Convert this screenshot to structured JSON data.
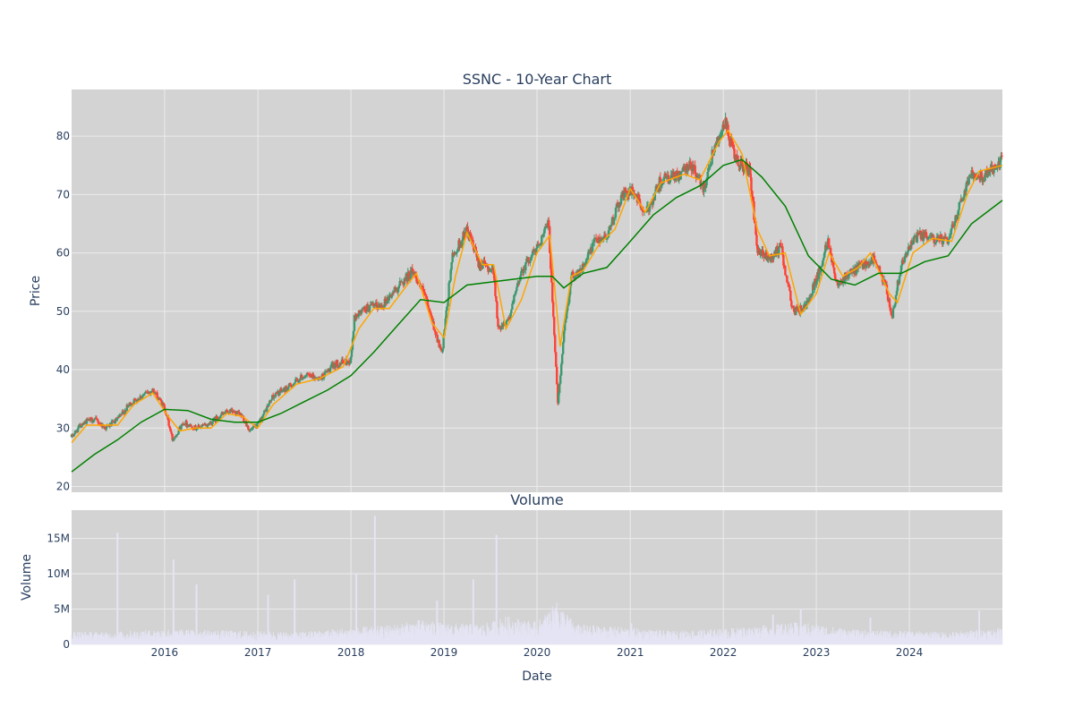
{
  "chart_data": [
    {
      "type": "candlestick",
      "title": "SSNC - 10-Year Chart",
      "xlabel": "",
      "ylabel": "Price",
      "ylim": [
        19,
        88
      ],
      "yticks": [
        20,
        30,
        40,
        50,
        60,
        70,
        80
      ],
      "xticks": [
        "2016",
        "2017",
        "2018",
        "2019",
        "2020",
        "2021",
        "2022",
        "2023",
        "2024"
      ],
      "xrange": [
        "2015-01-01",
        "2024-12-31"
      ],
      "grid": true,
      "colors": {
        "up": "#3d9970",
        "down": "#ff4136",
        "ma_fast": "#ffa500",
        "ma_slow": "#008000",
        "plot_bg": "#d3d3d3"
      },
      "close_path": [
        [
          "2015-01-01",
          28.5
        ],
        [
          "2015-02-15",
          31.0
        ],
        [
          "2015-04-01",
          31.5
        ],
        [
          "2015-05-15",
          30.0
        ],
        [
          "2015-07-01",
          31.5
        ],
        [
          "2015-08-15",
          34.0
        ],
        [
          "2015-10-01",
          35.5
        ],
        [
          "2015-11-15",
          36.5
        ],
        [
          "2016-01-01",
          33.5
        ],
        [
          "2016-02-01",
          28.0
        ],
        [
          "2016-03-15",
          31.0
        ],
        [
          "2016-05-01",
          30.0
        ],
        [
          "2016-06-15",
          30.5
        ],
        [
          "2016-08-01",
          32.0
        ],
        [
          "2016-09-15",
          33.0
        ],
        [
          "2016-11-01",
          32.0
        ],
        [
          "2016-12-01",
          29.5
        ],
        [
          "2017-01-01",
          30.5
        ],
        [
          "2017-03-01",
          35.5
        ],
        [
          "2017-05-01",
          37.0
        ],
        [
          "2017-07-01",
          39.0
        ],
        [
          "2017-09-01",
          38.5
        ],
        [
          "2017-11-01",
          41.0
        ],
        [
          "2017-12-31",
          41.5
        ],
        [
          "2018-01-15",
          49.0
        ],
        [
          "2018-03-01",
          50.5
        ],
        [
          "2018-05-01",
          51.0
        ],
        [
          "2018-07-01",
          54.0
        ],
        [
          "2018-09-01",
          57.0
        ],
        [
          "2018-10-15",
          53.0
        ],
        [
          "2018-12-01",
          46.0
        ],
        [
          "2018-12-24",
          42.5
        ],
        [
          "2019-02-01",
          59.0
        ],
        [
          "2019-04-01",
          64.0
        ],
        [
          "2019-05-15",
          58.5
        ],
        [
          "2019-07-15",
          57.0
        ],
        [
          "2019-08-01",
          47.0
        ],
        [
          "2019-09-15",
          49.0
        ],
        [
          "2019-11-01",
          57.0
        ],
        [
          "2020-01-01",
          61.0
        ],
        [
          "2020-02-15",
          65.0
        ],
        [
          "2020-03-23",
          34.0
        ],
        [
          "2020-04-15",
          46.0
        ],
        [
          "2020-05-15",
          56.0
        ],
        [
          "2020-07-01",
          57.5
        ],
        [
          "2020-08-15",
          62.0
        ],
        [
          "2020-10-01",
          63.0
        ],
        [
          "2020-12-01",
          70.0
        ],
        [
          "2021-01-15",
          70.5
        ],
        [
          "2021-03-01",
          66.5
        ],
        [
          "2021-05-01",
          72.5
        ],
        [
          "2021-07-01",
          73.0
        ],
        [
          "2021-09-01",
          75.0
        ],
        [
          "2021-10-15",
          71.0
        ],
        [
          "2021-12-01",
          79.0
        ],
        [
          "2022-01-10",
          82.0
        ],
        [
          "2022-02-15",
          76.0
        ],
        [
          "2022-04-15",
          74.0
        ],
        [
          "2022-05-15",
          60.0
        ],
        [
          "2022-07-01",
          59.0
        ],
        [
          "2022-08-15",
          61.0
        ],
        [
          "2022-10-01",
          50.0
        ],
        [
          "2022-11-15",
          50.5
        ],
        [
          "2023-01-15",
          57.0
        ],
        [
          "2023-02-15",
          62.5
        ],
        [
          "2023-03-20",
          55.0
        ],
        [
          "2023-05-01",
          56.0
        ],
        [
          "2023-07-01",
          58.0
        ],
        [
          "2023-08-15",
          59.0
        ],
        [
          "2023-10-01",
          54.0
        ],
        [
          "2023-10-25",
          49.0
        ],
        [
          "2023-12-01",
          58.5
        ],
        [
          "2024-02-01",
          63.0
        ],
        [
          "2024-04-01",
          62.5
        ],
        [
          "2024-06-01",
          62.0
        ],
        [
          "2024-07-20",
          69.0
        ],
        [
          "2024-09-01",
          74.0
        ],
        [
          "2024-10-15",
          73.0
        ],
        [
          "2024-12-31",
          76.0
        ]
      ],
      "series": [
        {
          "key": "ma_fast",
          "values": [
            [
              "2015-01-01",
              27.5
            ],
            [
              "2015-03-01",
              30.5
            ],
            [
              "2015-05-01",
              30.5
            ],
            [
              "2015-07-01",
              30.5
            ],
            [
              "2015-09-01",
              34.0
            ],
            [
              "2015-11-15",
              36.0
            ],
            [
              "2016-01-15",
              32.0
            ],
            [
              "2016-03-01",
              29.5
            ],
            [
              "2016-05-01",
              30.0
            ],
            [
              "2016-07-01",
              30.0
            ],
            [
              "2016-09-01",
              32.5
            ],
            [
              "2016-11-01",
              32.0
            ],
            [
              "2016-12-31",
              30.0
            ],
            [
              "2017-03-01",
              34.0
            ],
            [
              "2017-06-01",
              37.5
            ],
            [
              "2017-09-01",
              38.5
            ],
            [
              "2017-12-01",
              40.5
            ],
            [
              "2018-02-01",
              47.0
            ],
            [
              "2018-04-01",
              50.5
            ],
            [
              "2018-06-01",
              50.5
            ],
            [
              "2018-08-01",
              54.0
            ],
            [
              "2018-09-15",
              56.5
            ],
            [
              "2018-11-15",
              48.0
            ],
            [
              "2019-01-01",
              45.5
            ],
            [
              "2019-02-15",
              56.0
            ],
            [
              "2019-04-01",
              63.5
            ],
            [
              "2019-06-01",
              58.0
            ],
            [
              "2019-07-15",
              58.0
            ],
            [
              "2019-09-01",
              47.0
            ],
            [
              "2019-11-01",
              52.0
            ],
            [
              "2020-01-01",
              60.0
            ],
            [
              "2020-02-20",
              63.0
            ],
            [
              "2020-04-01",
              44.0
            ],
            [
              "2020-05-15",
              56.0
            ],
            [
              "2020-07-01",
              57.0
            ],
            [
              "2020-09-01",
              61.5
            ],
            [
              "2020-11-01",
              64.0
            ],
            [
              "2021-01-01",
              71.0
            ],
            [
              "2021-03-01",
              67.0
            ],
            [
              "2021-05-01",
              72.0
            ],
            [
              "2021-08-01",
              73.5
            ],
            [
              "2021-10-01",
              72.5
            ],
            [
              "2021-12-15",
              79.0
            ],
            [
              "2022-01-20",
              81.0
            ],
            [
              "2022-03-15",
              77.0
            ],
            [
              "2022-05-15",
              64.0
            ],
            [
              "2022-07-01",
              59.5
            ],
            [
              "2022-09-01",
              60.0
            ],
            [
              "2022-11-01",
              49.5
            ],
            [
              "2023-01-01",
              53.0
            ],
            [
              "2023-02-20",
              60.0
            ],
            [
              "2023-04-15",
              56.0
            ],
            [
              "2023-06-15",
              57.5
            ],
            [
              "2023-08-01",
              60.0
            ],
            [
              "2023-10-15",
              53.0
            ],
            [
              "2023-11-15",
              51.5
            ],
            [
              "2024-01-15",
              60.0
            ],
            [
              "2024-04-01",
              62.5
            ],
            [
              "2024-06-15",
              62.0
            ],
            [
              "2024-08-15",
              70.0
            ],
            [
              "2024-10-01",
              74.0
            ],
            [
              "2024-12-31",
              75.0
            ]
          ]
        },
        {
          "key": "ma_slow",
          "values": [
            [
              "2015-01-01",
              22.5
            ],
            [
              "2015-04-01",
              25.5
            ],
            [
              "2015-07-01",
              28.0
            ],
            [
              "2015-10-01",
              31.0
            ],
            [
              "2016-01-01",
              33.2
            ],
            [
              "2016-04-01",
              33.0
            ],
            [
              "2016-07-01",
              31.5
            ],
            [
              "2016-10-01",
              31.0
            ],
            [
              "2017-01-01",
              31.0
            ],
            [
              "2017-04-01",
              32.5
            ],
            [
              "2017-07-01",
              34.5
            ],
            [
              "2017-10-01",
              36.5
            ],
            [
              "2018-01-01",
              39.0
            ],
            [
              "2018-04-01",
              43.0
            ],
            [
              "2018-07-01",
              47.5
            ],
            [
              "2018-10-01",
              52.0
            ],
            [
              "2019-01-01",
              51.5
            ],
            [
              "2019-04-01",
              54.5
            ],
            [
              "2019-07-01",
              55.0
            ],
            [
              "2019-10-01",
              55.5
            ],
            [
              "2020-01-01",
              56.0
            ],
            [
              "2020-03-01",
              56.0
            ],
            [
              "2020-04-15",
              54.0
            ],
            [
              "2020-07-01",
              56.5
            ],
            [
              "2020-10-01",
              57.5
            ],
            [
              "2021-01-01",
              62.0
            ],
            [
              "2021-04-01",
              66.5
            ],
            [
              "2021-07-01",
              69.5
            ],
            [
              "2021-10-01",
              71.5
            ],
            [
              "2022-01-01",
              75.0
            ],
            [
              "2022-03-15",
              76.0
            ],
            [
              "2022-06-01",
              73.0
            ],
            [
              "2022-09-01",
              68.0
            ],
            [
              "2022-12-01",
              59.5
            ],
            [
              "2023-03-01",
              55.5
            ],
            [
              "2023-06-01",
              54.5
            ],
            [
              "2023-09-01",
              56.5
            ],
            [
              "2023-12-01",
              56.5
            ],
            [
              "2024-03-01",
              58.5
            ],
            [
              "2024-06-01",
              59.5
            ],
            [
              "2024-09-01",
              65.0
            ],
            [
              "2024-12-31",
              69.0
            ]
          ]
        }
      ]
    },
    {
      "type": "bar",
      "title": "Volume",
      "xlabel": "Date",
      "ylabel": "Volume",
      "ylim": [
        0,
        19000000
      ],
      "yticks": [
        0,
        5000000,
        10000000,
        15000000
      ],
      "ytick_labels": [
        "0",
        "5M",
        "10M",
        "15M"
      ],
      "xticks": [
        "2016",
        "2017",
        "2018",
        "2019",
        "2020",
        "2021",
        "2022",
        "2023",
        "2024"
      ],
      "xrange": [
        "2015-01-01",
        "2024-12-31"
      ],
      "grid": true,
      "colors": {
        "bar": "#e4e4f4",
        "plot_bg": "#d3d3d3"
      },
      "baseline_path": [
        [
          "2015-01-01",
          1200000
        ],
        [
          "2015-06-01",
          1100000
        ],
        [
          "2016-01-01",
          1400000
        ],
        [
          "2016-06-01",
          1300000
        ],
        [
          "2017-01-01",
          1200000
        ],
        [
          "2017-06-01",
          1100000
        ],
        [
          "2018-01-01",
          1500000
        ],
        [
          "2018-06-01",
          1700000
        ],
        [
          "2018-10-01",
          2200000
        ],
        [
          "2019-01-01",
          1900000
        ],
        [
          "2019-06-01",
          1800000
        ],
        [
          "2019-09-01",
          2500000
        ],
        [
          "2020-01-01",
          2000000
        ],
        [
          "2020-03-20",
          3800000
        ],
        [
          "2020-06-01",
          1800000
        ],
        [
          "2021-01-01",
          1500000
        ],
        [
          "2021-06-01",
          1200000
        ],
        [
          "2022-01-01",
          1400000
        ],
        [
          "2022-06-01",
          1700000
        ],
        [
          "2022-11-01",
          2000000
        ],
        [
          "2023-06-01",
          1300000
        ],
        [
          "2024-01-01",
          1200000
        ],
        [
          "2024-06-01",
          1100000
        ],
        [
          "2024-12-31",
          1500000
        ]
      ],
      "spikes": [
        [
          "2015-06-30",
          15800000
        ],
        [
          "2016-02-05",
          12000000
        ],
        [
          "2016-05-05",
          8500000
        ],
        [
          "2017-02-10",
          7000000
        ],
        [
          "2017-05-25",
          9200000
        ],
        [
          "2018-01-22",
          10000000
        ],
        [
          "2018-04-05",
          18200000
        ],
        [
          "2018-12-05",
          6200000
        ],
        [
          "2019-04-26",
          9200000
        ],
        [
          "2019-07-26",
          15500000
        ],
        [
          "2020-03-15",
          5200000
        ],
        [
          "2020-04-10",
          4500000
        ],
        [
          "2021-01-05",
          3000000
        ],
        [
          "2022-07-15",
          4200000
        ],
        [
          "2022-11-01",
          5000000
        ],
        [
          "2023-08-01",
          3800000
        ],
        [
          "2024-10-01",
          4800000
        ]
      ]
    }
  ]
}
